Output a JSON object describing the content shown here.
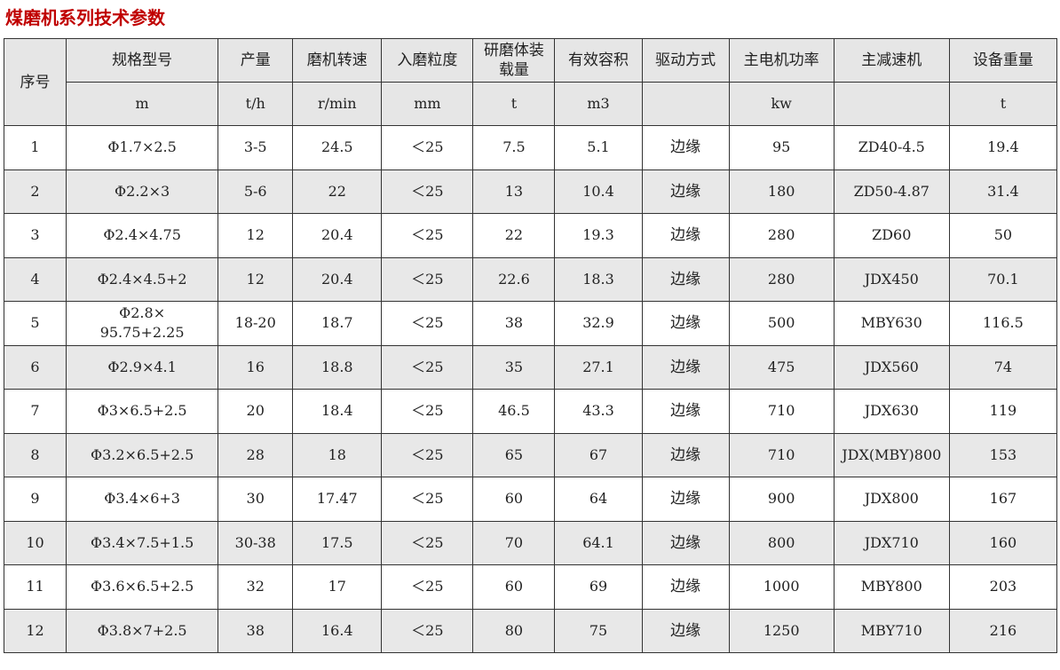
{
  "title": "煤磨机系列技术参数",
  "header": {
    "index": "序号",
    "columns": [
      "规格型号",
      "产量",
      "磨机转速",
      "入磨粒度",
      "研磨体装载量",
      "有效容积",
      "驱动方式",
      "主电机功率",
      "主减速机",
      "设备重量"
    ],
    "units": [
      "m",
      "t/h",
      "r/min",
      "mm",
      "t",
      "m3",
      "",
      "kw",
      "",
      "t"
    ]
  },
  "rows": [
    [
      "1",
      "Φ1.7×2.5",
      "3-5",
      "24.5",
      "＜25",
      "7.5",
      "5.1",
      "边缘",
      "95",
      "ZD40-4.5",
      "19.4"
    ],
    [
      "2",
      "Φ2.2×3",
      "5-6",
      "22",
      "＜25",
      "13",
      "10.4",
      "边缘",
      "180",
      "ZD50-4.87",
      "31.4"
    ],
    [
      "3",
      "Φ2.4×4.75",
      "12",
      "20.4",
      "＜25",
      "22",
      "19.3",
      "边缘",
      "280",
      "ZD60",
      "50"
    ],
    [
      "4",
      "Φ2.4×4.5+2",
      "12",
      "20.4",
      "＜25",
      "22.6",
      "18.3",
      "边缘",
      "280",
      "JDX450",
      "70.1"
    ],
    [
      "5",
      "Φ2.8×\n95.75+2.25",
      "18-20",
      "18.7",
      "＜25",
      "38",
      "32.9",
      "边缘",
      "500",
      "MBY630",
      "116.5"
    ],
    [
      "6",
      "Φ2.9×4.1",
      "16",
      "18.8",
      "＜25",
      "35",
      "27.1",
      "边缘",
      "475",
      "JDX560",
      "74"
    ],
    [
      "7",
      "Φ3×6.5+2.5",
      "20",
      "18.4",
      "＜25",
      "46.5",
      "43.3",
      "边缘",
      "710",
      "JDX630",
      "119"
    ],
    [
      "8",
      "Φ3.2×6.5+2.5",
      "28",
      "18",
      "＜25",
      "65",
      "67",
      "边缘",
      "710",
      "JDX(MBY)800",
      "153"
    ],
    [
      "9",
      "Φ3.4×6+3",
      "30",
      "17.47",
      "＜25",
      "60",
      "64",
      "边缘",
      "900",
      "JDX800",
      "167"
    ],
    [
      "10",
      "Φ3.4×7.5+1.5",
      "30-38",
      "17.5",
      "＜25",
      "70",
      "64.1",
      "边缘",
      "800",
      "JDX710",
      "160"
    ],
    [
      "11",
      "Φ3.6×6.5+2.5",
      "32",
      "17",
      "＜25",
      "60",
      "69",
      "边缘",
      "1000",
      "MBY800",
      "203"
    ],
    [
      "12",
      "Φ3.8×7+2.5",
      "38",
      "16.4",
      "＜25",
      "80",
      "75",
      "边缘",
      "1250",
      "MBY710",
      "216"
    ]
  ]
}
